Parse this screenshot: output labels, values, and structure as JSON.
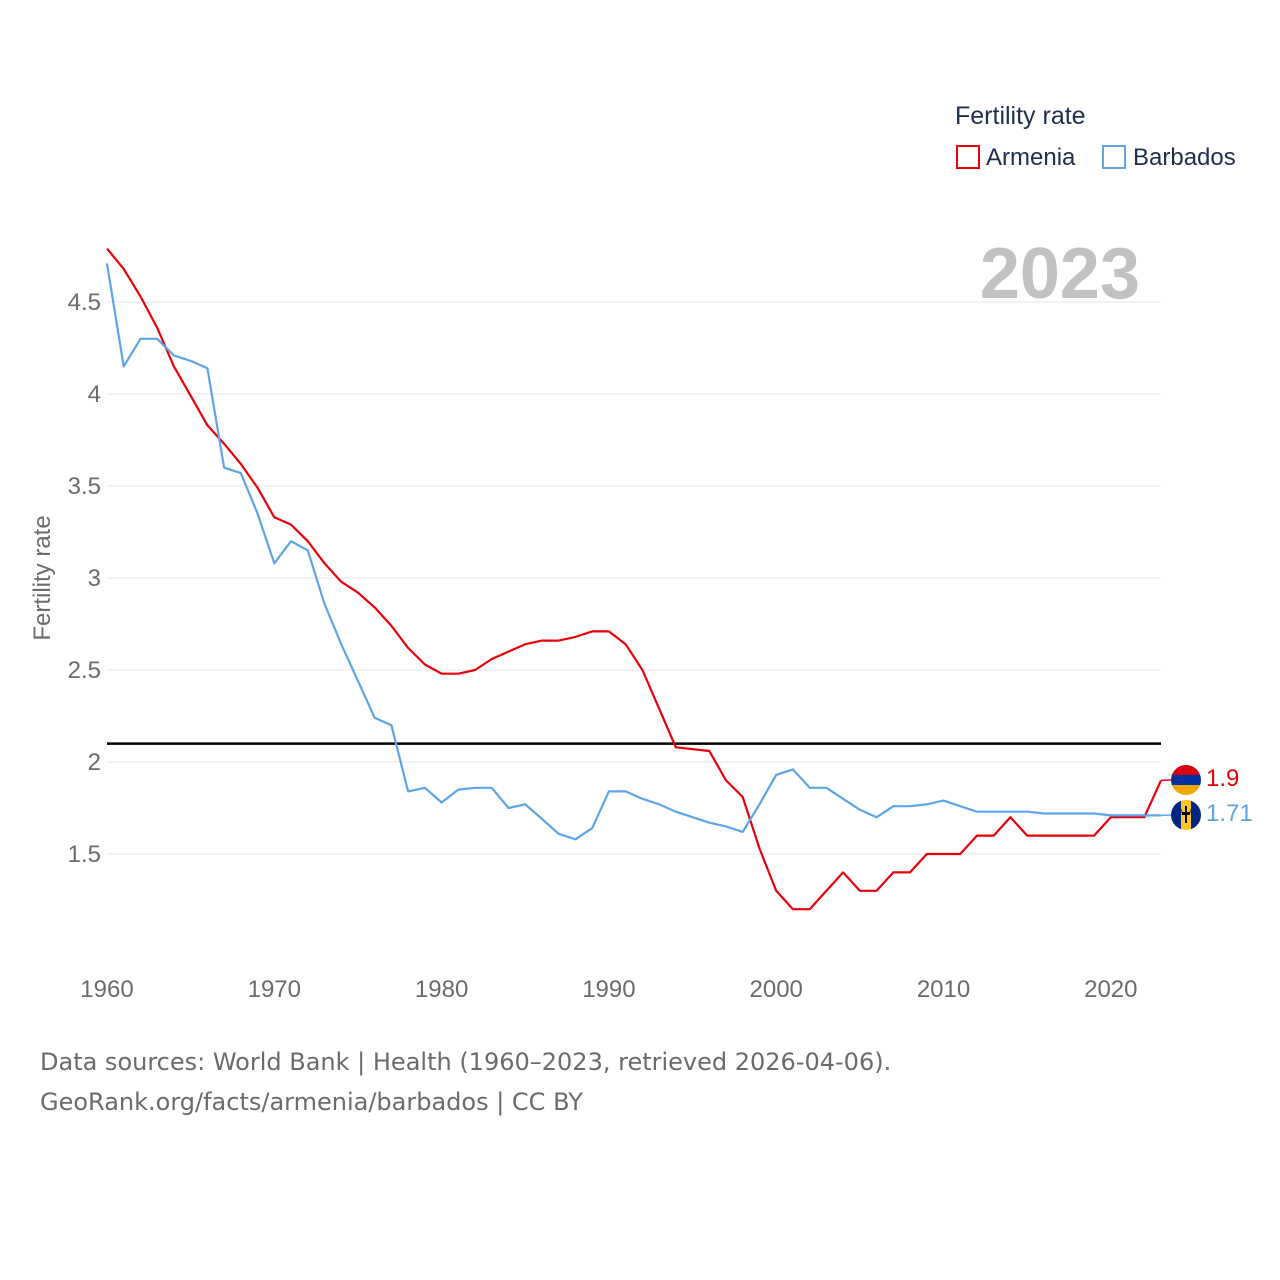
{
  "chart_data": {
    "type": "line",
    "legend_title": "Fertility rate",
    "ylabel": "Fertility rate",
    "year_watermark": "2023",
    "ylim": [
      0.95,
      4.9
    ],
    "xlim": [
      1960,
      2023
    ],
    "y_ticks": [
      "4.5",
      "4",
      "3.5",
      "3",
      "2.5",
      "2",
      "1.5"
    ],
    "y_tick_values": [
      4.5,
      4,
      3.5,
      3,
      2.5,
      2,
      1.5
    ],
    "x_ticks": [
      "1960",
      "1970",
      "1980",
      "1990",
      "2000",
      "2010",
      "2020"
    ],
    "x_tick_values": [
      1960,
      1970,
      1980,
      1990,
      2000,
      2010,
      2020
    ],
    "reference_line": 2.1,
    "series": [
      {
        "name": "Armenia",
        "color": "#e8000b",
        "end_label": "1.9",
        "start_year": 1960,
        "values": [
          4.79,
          4.68,
          4.53,
          4.36,
          4.15,
          3.99,
          3.83,
          3.73,
          3.62,
          3.49,
          3.33,
          3.29,
          3.2,
          3.08,
          2.98,
          2.92,
          2.84,
          2.74,
          2.62,
          2.53,
          2.48,
          2.48,
          2.5,
          2.56,
          2.6,
          2.64,
          2.66,
          2.66,
          2.68,
          2.71,
          2.71,
          2.64,
          2.5,
          2.29,
          2.08,
          2.07,
          2.06,
          1.9,
          1.81,
          1.53,
          1.3,
          1.2,
          1.2,
          1.3,
          1.4,
          1.3,
          1.3,
          1.4,
          1.4,
          1.5,
          1.5,
          1.5,
          1.6,
          1.6,
          1.7,
          1.6,
          1.6,
          1.6,
          1.6,
          1.6,
          1.7,
          1.7,
          1.7,
          1.9
        ]
      },
      {
        "name": "Barbados",
        "color": "#5da5e6",
        "end_label": "1.71",
        "start_year": 1960,
        "values": [
          4.71,
          4.15,
          4.3,
          4.3,
          4.21,
          4.18,
          4.14,
          3.6,
          3.57,
          3.35,
          3.08,
          3.2,
          3.15,
          2.86,
          2.64,
          2.44,
          2.24,
          2.2,
          1.84,
          1.86,
          1.78,
          1.85,
          1.86,
          1.86,
          1.75,
          1.77,
          1.69,
          1.61,
          1.58,
          1.64,
          1.84,
          1.84,
          1.8,
          1.77,
          1.73,
          1.7,
          1.67,
          1.65,
          1.62,
          1.77,
          1.93,
          1.96,
          1.86,
          1.86,
          1.8,
          1.74,
          1.7,
          1.76,
          1.76,
          1.77,
          1.79,
          1.76,
          1.73,
          1.73,
          1.73,
          1.73,
          1.72,
          1.72,
          1.72,
          1.72,
          1.71,
          1.71,
          1.71,
          1.71
        ]
      }
    ]
  },
  "footer": {
    "line1": "Data sources: World Bank | Health (1960–2023, retrieved 2026-04-06).",
    "line2": "GeoRank.org/facts/armenia/barbados | CC BY"
  }
}
